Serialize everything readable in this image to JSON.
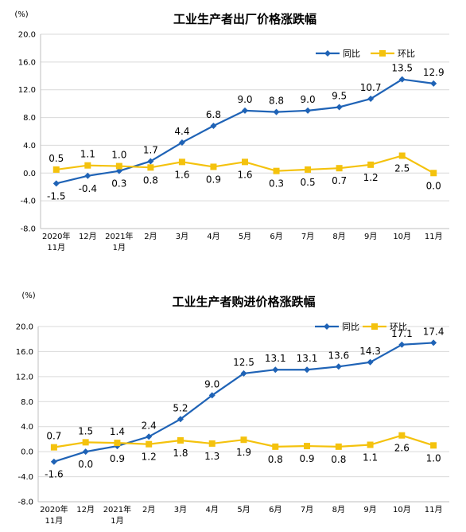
{
  "chart_data": [
    {
      "type": "line",
      "title": "工业生产者出厂价格涨跌幅",
      "ylabel": "(%)",
      "ylim": [
        -8.0,
        20.0
      ],
      "yticks": [
        "20.0",
        "16.0",
        "12.0",
        "8.0",
        "4.0",
        "0.0",
        "-4.0",
        "-8.0"
      ],
      "ytick_values": [
        20,
        16,
        12,
        8,
        4,
        0,
        -4,
        -8
      ],
      "categories": [
        [
          "2020年",
          "11月"
        ],
        [
          "12月"
        ],
        [
          "2021年",
          "1月"
        ],
        [
          "2月"
        ],
        [
          "3月"
        ],
        [
          "4月"
        ],
        [
          "5月"
        ],
        [
          "6月"
        ],
        [
          "7月"
        ],
        [
          "8月"
        ],
        [
          "9月"
        ],
        [
          "10月"
        ],
        [
          "11月"
        ]
      ],
      "legend_position": "top-right",
      "series": [
        {
          "name": "同比",
          "color": "#1f63b6",
          "marker": "diamond",
          "values": [
            -1.5,
            -0.4,
            0.3,
            1.7,
            4.4,
            6.8,
            9.0,
            8.8,
            9.0,
            9.5,
            10.7,
            13.5,
            12.9
          ],
          "labels": [
            "-1.5",
            "-0.4",
            "0.3",
            "1.7",
            "4.4",
            "6.8",
            "9.0",
            "8.8",
            "9.0",
            "9.5",
            "10.7",
            "13.5",
            "12.9"
          ]
        },
        {
          "name": "环比",
          "color": "#f4c20d",
          "marker": "square",
          "values": [
            0.5,
            1.1,
            1.0,
            0.8,
            1.6,
            0.9,
            1.6,
            0.3,
            0.5,
            0.7,
            1.2,
            2.5,
            0.0
          ],
          "labels": [
            "0.5",
            "1.1",
            "1.0",
            "0.8",
            "1.6",
            "0.9",
            "1.6",
            "0.3",
            "0.5",
            "0.7",
            "1.2",
            "2.5",
            "0.0"
          ]
        }
      ]
    },
    {
      "type": "line",
      "title": "工业生产者购进价格涨跌幅",
      "ylabel": "(%)",
      "ylim": [
        -8.0,
        20.0
      ],
      "yticks": [
        "20.0",
        "16.0",
        "12.0",
        "8.0",
        "4.0",
        "0.0",
        "-4.0",
        "-8.0"
      ],
      "ytick_values": [
        20,
        16,
        12,
        8,
        4,
        0,
        -4,
        -8
      ],
      "categories": [
        [
          "2020年",
          "11月"
        ],
        [
          "12月"
        ],
        [
          "2021年",
          "1月"
        ],
        [
          "2月"
        ],
        [
          "3月"
        ],
        [
          "4月"
        ],
        [
          "5月"
        ],
        [
          "6月"
        ],
        [
          "7月"
        ],
        [
          "8月"
        ],
        [
          "9月"
        ],
        [
          "10月"
        ],
        [
          "11月"
        ]
      ],
      "legend_position": "top-right",
      "series": [
        {
          "name": "同比",
          "color": "#1f63b6",
          "marker": "diamond",
          "values": [
            -1.6,
            0.0,
            0.9,
            2.4,
            5.2,
            9.0,
            12.5,
            13.1,
            13.1,
            13.6,
            14.3,
            17.1,
            17.4
          ],
          "labels": [
            "-1.6",
            "0.0",
            "0.9",
            "2.4",
            "5.2",
            "9.0",
            "12.5",
            "13.1",
            "13.1",
            "13.6",
            "14.3",
            "17.1",
            "17.4"
          ]
        },
        {
          "name": "环比",
          "color": "#f4c20d",
          "marker": "square",
          "values": [
            0.7,
            1.5,
            1.4,
            1.2,
            1.8,
            1.3,
            1.9,
            0.8,
            0.9,
            0.8,
            1.1,
            2.6,
            1.0
          ],
          "labels": [
            "0.7",
            "1.5",
            "1.4",
            "1.2",
            "1.8",
            "1.3",
            "1.9",
            "0.8",
            "0.9",
            "0.8",
            "1.1",
            "2.6",
            "1.0"
          ]
        }
      ]
    }
  ]
}
